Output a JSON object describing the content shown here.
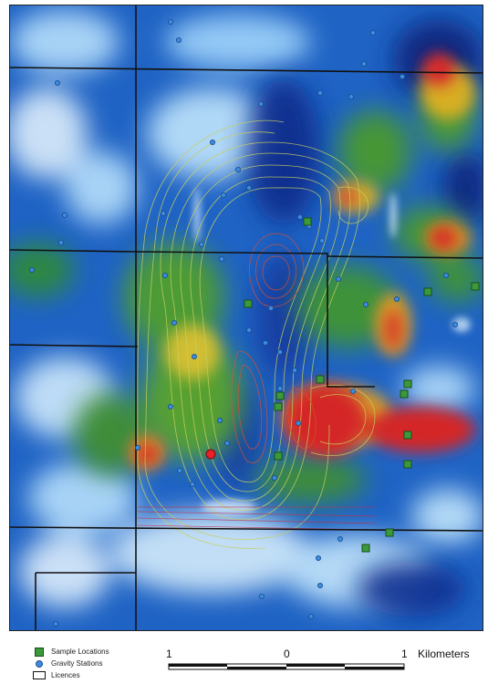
{
  "legend": {
    "sample_label": "Sample Locations",
    "gravity_label": "Gravity Stations",
    "licence_label": "Licences"
  },
  "scale_bar": {
    "left_label": "1",
    "mid_label": "0",
    "right_label": "1",
    "unit_label": "Kilometers"
  },
  "colors": {
    "sample": "#3a9a3a",
    "gravity": "#3d8be0",
    "highlight_sample": "#e8212b",
    "licence": "#111111"
  }
}
